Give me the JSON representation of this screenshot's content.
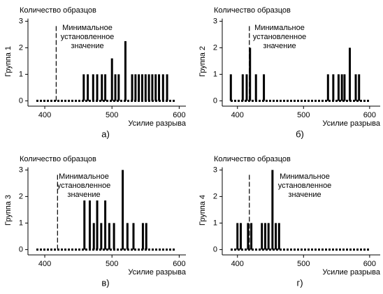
{
  "chart_data": [
    {
      "type": "bar",
      "y_label": "Количество образцов",
      "group_label": "Группа 1",
      "x_label": "Усилие разрыва",
      "panel_label": "а)",
      "annotation": [
        "Минимальное",
        "установленное",
        "значение"
      ],
      "threshold": 417,
      "x": [
        458,
        464,
        472,
        478,
        485,
        490,
        500,
        505,
        510,
        520,
        530,
        535,
        540,
        545,
        550,
        555,
        560,
        565,
        570,
        576,
        582
      ],
      "values": [
        1,
        1,
        1,
        1,
        1,
        1,
        1.6,
        1,
        1,
        2.25,
        1,
        1,
        1,
        1,
        1,
        1,
        1,
        1,
        1,
        1,
        1
      ],
      "color": "#000000",
      "xlim": [
        375,
        610
      ],
      "ylim": [
        -0.2,
        3.1
      ],
      "xticks": [
        400,
        500,
        600
      ],
      "yticks": [
        0,
        1,
        2,
        3
      ]
    },
    {
      "type": "bar",
      "y_label": "Количество образцов",
      "group_label": "Группа 2",
      "x_label": "Усилие разрыва",
      "panel_label": "б)",
      "annotation": [
        "Минимальное",
        "установленное",
        "значение"
      ],
      "threshold": 418,
      "x": [
        390,
        408,
        414,
        419,
        428,
        440,
        537,
        545,
        553,
        558,
        562,
        570,
        579,
        584
      ],
      "values": [
        1,
        1,
        1,
        2,
        1,
        1,
        1,
        1,
        1,
        1,
        1,
        2,
        1,
        1
      ],
      "color": "#000000",
      "xlim": [
        377,
        616
      ],
      "ylim": [
        -0.2,
        3.1
      ],
      "xticks": [
        400,
        500,
        600
      ],
      "yticks": [
        0,
        1,
        2,
        3
      ]
    },
    {
      "type": "bar",
      "y_label": "Количество образцов",
      "group_label": "Группа 3",
      "x_label": "Усилие разрыва",
      "panel_label": "в)",
      "annotation": [
        "Минимальное",
        "установленное",
        "значение"
      ],
      "threshold": 419,
      "x": [
        459,
        467,
        473,
        478,
        484,
        490,
        496,
        503,
        516,
        523,
        532,
        546,
        551
      ],
      "values": [
        1.85,
        1.85,
        1,
        1.85,
        1,
        1.85,
        1,
        1,
        3,
        1,
        1,
        1,
        1
      ],
      "color": "#000000",
      "xlim": [
        375,
        610
      ],
      "ylim": [
        -0.2,
        3.1
      ],
      "xticks": [
        400,
        500,
        600
      ],
      "yticks": [
        0,
        1,
        2,
        3
      ]
    },
    {
      "type": "bar",
      "y_label": "Количество образцов",
      "group_label": "Группа 4",
      "x_label": "Усилие разрыва",
      "panel_label": "г)",
      "annotation": [
        "Минимальное",
        "установленное",
        "значение"
      ],
      "threshold": 418,
      "x": [
        400,
        405,
        416,
        421,
        437,
        442,
        447,
        453,
        458,
        463
      ],
      "values": [
        1,
        1,
        1,
        1,
        1,
        1,
        1,
        3,
        1,
        1
      ],
      "color": "#000000",
      "xlim": [
        377,
        616
      ],
      "ylim": [
        -0.2,
        3.1
      ],
      "xticks": [
        400,
        500,
        600
      ],
      "yticks": [
        0,
        1,
        2,
        3
      ]
    }
  ]
}
